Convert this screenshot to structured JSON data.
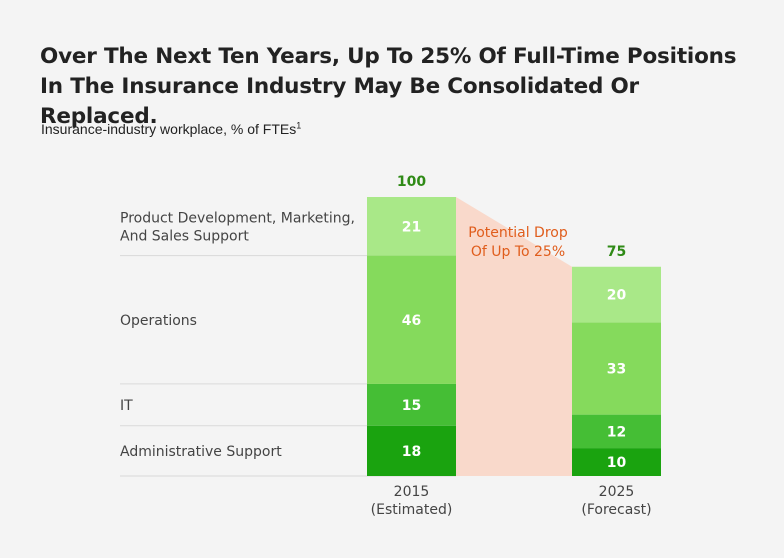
{
  "title": "Over The Next Ten Years, Up To 25% Of Full-Time Positions In The Insurance Industry May Be Consolidated Or Replaced.",
  "subtitle": "Insurance-industry workplace, % of FTEs",
  "subtitle_footnote": "1",
  "colors": {
    "Administrative Support": "#1aa30f",
    "IT": "#45be35",
    "Operations": "#85da5c",
    "Product Development, Marketing, And Sales Support": "#a9e888",
    "total_label": "#2f8a16",
    "drop_band": "#f9d9cb",
    "drop_label": "#e05d1c",
    "grid": "#d9d9d9"
  },
  "chart_data": {
    "type": "bar",
    "stacked": true,
    "categories": [
      [
        "2015",
        "(Estimated)"
      ],
      [
        "2025",
        "(Forecast)"
      ]
    ],
    "series": [
      {
        "name": "Administrative Support",
        "values": [
          18,
          10
        ]
      },
      {
        "name": "IT",
        "values": [
          15,
          12
        ]
      },
      {
        "name": "Operations",
        "values": [
          46,
          33
        ]
      },
      {
        "name": "Product Development, Marketing, And Sales Support",
        "values": [
          21,
          20
        ]
      }
    ],
    "series_labels": [
      [
        "Administrative Support"
      ],
      [
        "IT"
      ],
      [
        "Operations"
      ],
      [
        "Product Development, Marketing,",
        "And Sales Support"
      ]
    ],
    "totals": [
      100,
      75
    ],
    "annotation": [
      "Potential Drop",
      "Of Up To 25%"
    ],
    "ylim": [
      0,
      100
    ],
    "grid": false,
    "legend": "left"
  }
}
